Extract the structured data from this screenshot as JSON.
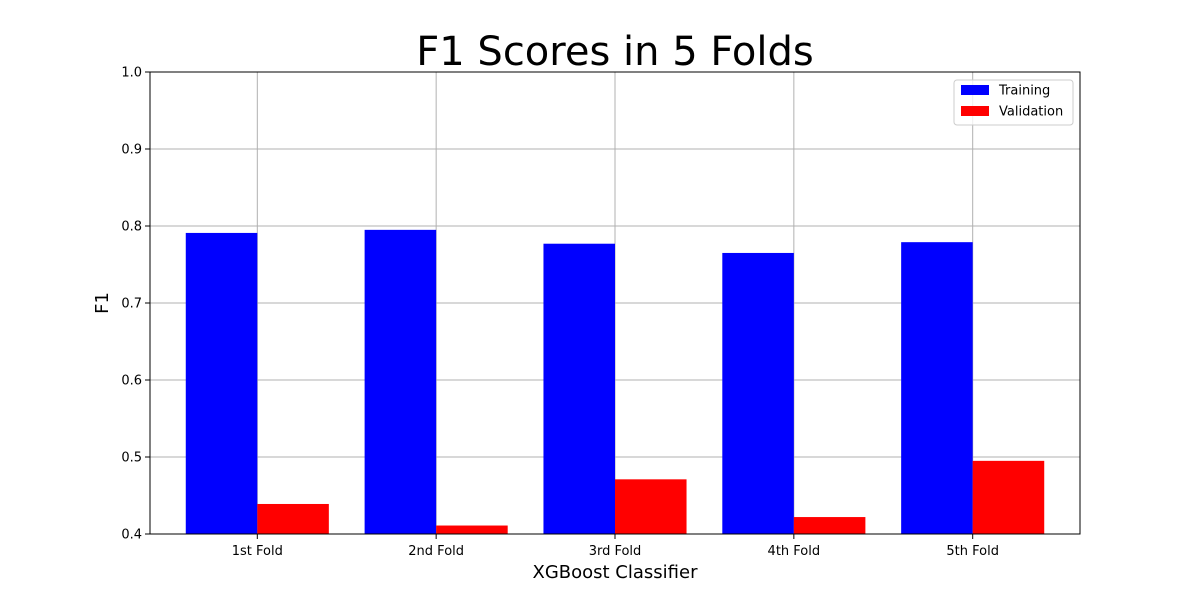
{
  "chart_data": {
    "type": "bar",
    "title": "F1 Scores in 5 Folds",
    "xlabel": "XGBoost Classifier",
    "ylabel": "F1",
    "categories": [
      "1st Fold",
      "2nd Fold",
      "3rd Fold",
      "4th Fold",
      "5th Fold"
    ],
    "series": [
      {
        "name": "Training",
        "color": "#0000ff",
        "values": [
          0.791,
          0.795,
          0.777,
          0.765,
          0.779
        ]
      },
      {
        "name": "Validation",
        "color": "#ff0000",
        "values": [
          0.439,
          0.411,
          0.471,
          0.422,
          0.495
        ]
      }
    ],
    "ylim": [
      0.4,
      1.0
    ],
    "yticks": [
      "0.4",
      "0.5",
      "0.6",
      "0.7",
      "0.8",
      "0.9",
      "1.0"
    ],
    "grid": true,
    "legend_position": "top-right"
  }
}
